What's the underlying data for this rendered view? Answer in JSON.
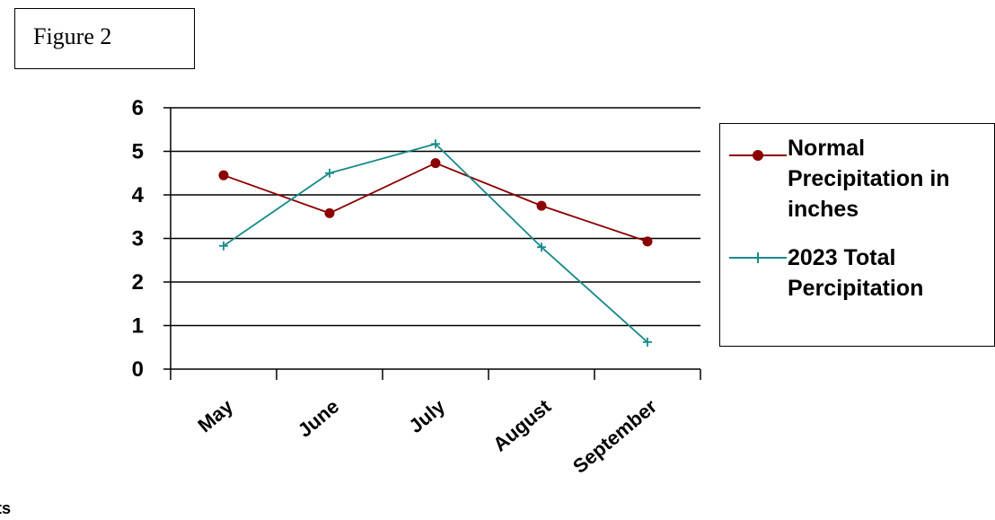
{
  "figure_label": "Figure 2",
  "edge_text": "ts",
  "colors": {
    "normal": "#8b0000",
    "actual": "#178a8a",
    "grid": "#000000"
  },
  "chart_data": {
    "type": "line",
    "categories": [
      "May",
      "June",
      "July",
      "August",
      "September"
    ],
    "series": [
      {
        "name": "Normal Precipitation in inches",
        "values": [
          4.45,
          3.58,
          4.73,
          3.75,
          2.93
        ],
        "marker": "circle",
        "color": "#8b0000"
      },
      {
        "name": "2023 Total Percipitation",
        "values": [
          2.83,
          4.5,
          5.17,
          2.8,
          0.62
        ],
        "marker": "plus",
        "color": "#178a8a"
      }
    ],
    "y_ticks": [
      "0",
      "1",
      "2",
      "3",
      "4",
      "5",
      "6"
    ],
    "ylim": [
      0,
      6
    ],
    "grid": true,
    "legend_position": "right"
  }
}
